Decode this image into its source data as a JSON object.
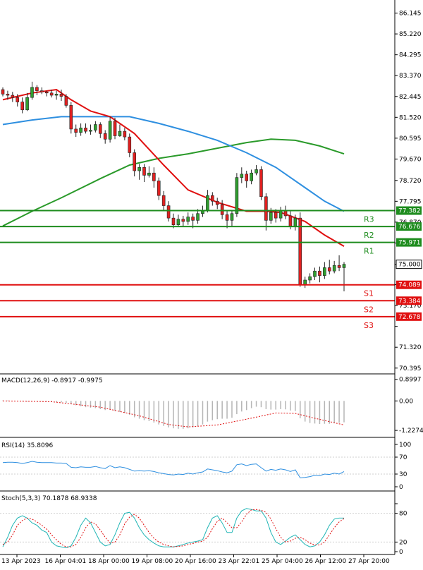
{
  "colors": {
    "candle_up": "#2f9e2f",
    "candle_down": "#e02020",
    "resistance": "#1e8c1e",
    "support": "#e01010",
    "ma_fast": "#e01010",
    "ma_mid": "#2e8fe0",
    "ma_slow": "#2a9a2a",
    "macd_signal": "#e01010",
    "rsi_line": "#2e8fe0",
    "stoch_k": "#1fb5b5",
    "stoch_d": "#e01010"
  },
  "chart_data": {
    "type": "candlestick",
    "price_axis": {
      "ticks": [
        86.145,
        85.22,
        84.295,
        83.37,
        82.445,
        81.52,
        80.595,
        79.67,
        78.72,
        77.795,
        76.87,
        75.945,
        75.0,
        74.095,
        73.17,
        72.245,
        71.32,
        70.395
      ],
      "labels": [
        "86.145",
        "85.220",
        "84.295",
        "83.370",
        "82.445",
        "81.520",
        "80.595",
        "79.670",
        "78.720",
        "77.795",
        "76.870",
        "",
        "75.000",
        "",
        "73.170",
        "",
        "71.320",
        "70.395"
      ],
      "ylim": [
        70.2,
        86.6
      ]
    },
    "time_axis": {
      "labels": [
        "13 Apr 2023",
        "16 Apr 04:01",
        "18 Apr 00:00",
        "19 Apr 08:00",
        "20 Apr 16:00",
        "23 Apr 22:01",
        "25 Apr 04:00",
        "26 Apr 12:00",
        "27 Apr 20:00"
      ]
    },
    "candles": [
      [
        82.75,
        82.55,
        82.85,
        82.45
      ],
      [
        82.55,
        82.5,
        82.7,
        82.3
      ],
      [
        82.5,
        82.4,
        82.65,
        82.2
      ],
      [
        82.4,
        82.2,
        82.55,
        82.0
      ],
      [
        82.2,
        81.85,
        82.4,
        81.7
      ],
      [
        81.85,
        82.4,
        82.6,
        81.8
      ],
      [
        82.4,
        82.85,
        83.1,
        82.3
      ],
      [
        82.85,
        82.7,
        82.95,
        82.5
      ],
      [
        82.7,
        82.65,
        82.85,
        82.55
      ],
      [
        82.65,
        82.6,
        82.7,
        82.45
      ],
      [
        82.6,
        82.5,
        82.75,
        82.4
      ],
      [
        82.5,
        82.55,
        82.7,
        82.3
      ],
      [
        82.55,
        82.45,
        82.75,
        82.25
      ],
      [
        82.45,
        82.05,
        82.55,
        81.95
      ],
      [
        82.05,
        81.0,
        82.2,
        80.8
      ],
      [
        81.0,
        80.85,
        81.2,
        80.65
      ],
      [
        80.85,
        81.05,
        81.25,
        80.7
      ],
      [
        81.05,
        80.9,
        81.25,
        80.8
      ],
      [
        80.9,
        80.95,
        81.2,
        80.75
      ],
      [
        80.95,
        81.2,
        81.35,
        80.85
      ],
      [
        81.2,
        80.8,
        81.3,
        80.6
      ],
      [
        80.8,
        80.55,
        80.95,
        80.35
      ],
      [
        80.55,
        81.35,
        81.55,
        80.4
      ],
      [
        81.35,
        80.7,
        81.5,
        80.55
      ],
      [
        80.7,
        80.9,
        81.2,
        80.65
      ],
      [
        80.9,
        80.65,
        81.05,
        80.5
      ],
      [
        80.65,
        79.95,
        80.8,
        79.75
      ],
      [
        79.95,
        79.15,
        80.1,
        78.9
      ],
      [
        79.15,
        79.3,
        79.45,
        78.75
      ],
      [
        79.3,
        78.95,
        79.45,
        78.65
      ],
      [
        78.95,
        79.05,
        79.35,
        78.85
      ],
      [
        79.05,
        78.7,
        79.3,
        78.4
      ],
      [
        78.7,
        78.05,
        78.85,
        77.85
      ],
      [
        78.05,
        77.6,
        78.25,
        77.4
      ],
      [
        77.6,
        77.05,
        77.8,
        76.9
      ],
      [
        77.05,
        76.75,
        77.25,
        76.6
      ],
      [
        76.75,
        77.0,
        77.2,
        76.7
      ],
      [
        77.0,
        76.9,
        77.15,
        76.65
      ],
      [
        76.9,
        77.1,
        77.3,
        76.75
      ],
      [
        77.1,
        76.95,
        77.25,
        76.6
      ],
      [
        76.95,
        77.25,
        77.45,
        76.8
      ],
      [
        77.25,
        77.4,
        77.6,
        77.1
      ],
      [
        77.4,
        78.05,
        78.3,
        77.3
      ],
      [
        78.05,
        77.8,
        78.2,
        77.6
      ],
      [
        77.8,
        77.65,
        77.95,
        77.45
      ],
      [
        77.65,
        77.2,
        77.85,
        77.0
      ],
      [
        77.2,
        76.95,
        77.4,
        76.6
      ],
      [
        76.95,
        77.25,
        77.4,
        76.7
      ],
      [
        77.25,
        78.85,
        79.05,
        77.1
      ],
      [
        78.85,
        79.0,
        79.3,
        78.6
      ],
      [
        79.0,
        78.7,
        79.15,
        78.4
      ],
      [
        78.7,
        79.05,
        79.2,
        78.55
      ],
      [
        79.05,
        79.2,
        79.4,
        78.95
      ],
      [
        79.2,
        78.0,
        79.35,
        77.85
      ],
      [
        78.0,
        76.95,
        78.15,
        76.5
      ],
      [
        76.95,
        77.3,
        77.5,
        76.8
      ],
      [
        77.3,
        77.05,
        77.45,
        76.85
      ],
      [
        77.05,
        77.4,
        77.55,
        76.9
      ],
      [
        77.4,
        77.15,
        77.6,
        77.0
      ],
      [
        77.15,
        76.7,
        77.35,
        76.55
      ],
      [
        76.7,
        77.05,
        77.2,
        76.5
      ],
      [
        77.05,
        74.1,
        77.3,
        74.0
      ],
      [
        74.1,
        74.3,
        74.45,
        73.95
      ],
      [
        74.3,
        74.45,
        74.6,
        74.15
      ],
      [
        74.45,
        74.7,
        74.85,
        74.3
      ],
      [
        74.7,
        74.5,
        74.9,
        74.2
      ],
      [
        74.5,
        74.85,
        75.1,
        74.35
      ],
      [
        74.85,
        74.7,
        75.2,
        74.55
      ],
      [
        74.7,
        74.95,
        75.15,
        74.6
      ],
      [
        74.95,
        74.85,
        75.4,
        74.7
      ],
      [
        74.85,
        75.0,
        75.1,
        73.8
      ]
    ],
    "sma_fast": [
      [
        0,
        82.3
      ],
      [
        6,
        82.6
      ],
      [
        11,
        82.75
      ],
      [
        14,
        82.3
      ],
      [
        18,
        81.8
      ],
      [
        22,
        81.55
      ],
      [
        27,
        80.8
      ],
      [
        33,
        79.4
      ],
      [
        38,
        78.3
      ],
      [
        44,
        77.75
      ],
      [
        50,
        77.35
      ],
      [
        54,
        77.35
      ],
      [
        57,
        77.3
      ],
      [
        62,
        76.9
      ],
      [
        66,
        76.3
      ],
      [
        70,
        75.8
      ]
    ],
    "sma_mid": [
      [
        0,
        81.2
      ],
      [
        6,
        81.4
      ],
      [
        12,
        81.55
      ],
      [
        18,
        81.55
      ],
      [
        26,
        81.55
      ],
      [
        32,
        81.25
      ],
      [
        38,
        80.9
      ],
      [
        44,
        80.5
      ],
      [
        50,
        79.95
      ],
      [
        56,
        79.3
      ],
      [
        62,
        78.4
      ],
      [
        66,
        77.8
      ],
      [
        70,
        77.35
      ]
    ],
    "sma_slow": [
      [
        0,
        76.7
      ],
      [
        6,
        77.35
      ],
      [
        12,
        77.95
      ],
      [
        20,
        78.8
      ],
      [
        26,
        79.4
      ],
      [
        32,
        79.7
      ],
      [
        38,
        79.9
      ],
      [
        44,
        80.15
      ],
      [
        50,
        80.4
      ],
      [
        55,
        80.55
      ],
      [
        60,
        80.5
      ],
      [
        65,
        80.25
      ],
      [
        70,
        79.9
      ]
    ],
    "levels": [
      {
        "label": "R3",
        "value": 77.382,
        "price_label": "77.382",
        "kind": "resistance"
      },
      {
        "label": "R2",
        "value": 76.676,
        "price_label": "76.676",
        "kind": "resistance"
      },
      {
        "label": "R1",
        "value": 75.971,
        "price_label": "75.971",
        "kind": "resistance"
      },
      {
        "label": "S1",
        "value": 74.089,
        "price_label": "74.089",
        "kind": "support"
      },
      {
        "label": "S2",
        "value": 73.384,
        "price_label": "73.384",
        "kind": "support"
      },
      {
        "label": "S3",
        "value": 72.678,
        "price_label": "72.678",
        "kind": "support"
      }
    ],
    "current_price": {
      "value": 75.0,
      "label": "75.000"
    },
    "macd": {
      "title": "MACD(12,26,9) -0.8917 -0.9975",
      "ticks": [
        0.8997,
        0.0,
        -1.2274
      ],
      "tick_labels": [
        "0.8997",
        "0.00",
        "-1.2274"
      ],
      "ylim": [
        -1.4,
        0.95
      ],
      "histogram": [
        0.02,
        0.02,
        0.01,
        0.0,
        -0.02,
        -0.03,
        -0.02,
        -0.01,
        -0.02,
        -0.03,
        -0.04,
        -0.05,
        -0.06,
        -0.08,
        -0.12,
        -0.18,
        -0.22,
        -0.26,
        -0.28,
        -0.3,
        -0.34,
        -0.38,
        -0.36,
        -0.42,
        -0.46,
        -0.5,
        -0.58,
        -0.68,
        -0.74,
        -0.8,
        -0.84,
        -0.9,
        -0.98,
        -1.04,
        -1.1,
        -1.14,
        -1.16,
        -1.16,
        -1.14,
        -1.1,
        -1.05,
        -0.98,
        -0.86,
        -0.8,
        -0.76,
        -0.74,
        -0.74,
        -0.7,
        -0.55,
        -0.44,
        -0.38,
        -0.3,
        -0.24,
        -0.26,
        -0.34,
        -0.36,
        -0.36,
        -0.34,
        -0.35,
        -0.4,
        -0.42,
        -0.72,
        -0.86,
        -0.92,
        -0.94,
        -0.96,
        -0.95,
        -0.95,
        -0.93,
        -0.91,
        -0.89
      ],
      "signal": [
        [
          0,
          0.0
        ],
        [
          10,
          -0.03
        ],
        [
          20,
          -0.26
        ],
        [
          28,
          -0.62
        ],
        [
          34,
          -0.98
        ],
        [
          38,
          -1.08
        ],
        [
          44,
          -1.0
        ],
        [
          50,
          -0.76
        ],
        [
          56,
          -0.5
        ],
        [
          60,
          -0.52
        ],
        [
          64,
          -0.72
        ],
        [
          70,
          -1.0
        ]
      ]
    },
    "rsi": {
      "title": "RSI(14) 35.8096",
      "ticks": [
        100,
        70,
        30,
        0
      ],
      "tick_labels": [
        "100",
        "70",
        "30",
        "0"
      ],
      "ylim": [
        0,
        100
      ],
      "values": [
        57,
        58,
        58,
        57,
        55,
        57,
        60,
        58,
        57,
        57,
        57,
        56,
        56,
        55,
        46,
        45,
        47,
        46,
        46,
        48,
        45,
        43,
        50,
        45,
        47,
        45,
        41,
        37,
        38,
        37,
        38,
        36,
        33,
        31,
        29,
        28,
        30,
        29,
        32,
        30,
        33,
        35,
        42,
        40,
        38,
        35,
        33,
        37,
        52,
        54,
        50,
        53,
        54,
        45,
        37,
        41,
        39,
        42,
        40,
        36,
        40,
        21,
        22,
        24,
        27,
        26,
        30,
        29,
        32,
        30,
        36
      ]
    },
    "stochastic": {
      "title": "Stoch(5,3,3) 70.1878 68.9338",
      "ticks": [
        100,
        80,
        20,
        0
      ],
      "tick_labels": [
        "",
        "80",
        "20",
        "0"
      ],
      "ylim": [
        0,
        100
      ],
      "k": [
        10,
        30,
        55,
        70,
        75,
        70,
        60,
        55,
        45,
        40,
        20,
        12,
        10,
        8,
        12,
        30,
        55,
        70,
        60,
        40,
        20,
        12,
        15,
        35,
        60,
        80,
        82,
        70,
        50,
        35,
        25,
        18,
        12,
        10,
        10,
        10,
        12,
        15,
        18,
        20,
        22,
        25,
        50,
        70,
        75,
        60,
        40,
        40,
        70,
        85,
        90,
        88,
        85,
        85,
        70,
        40,
        20,
        15,
        22,
        30,
        35,
        25,
        15,
        10,
        12,
        20,
        35,
        55,
        68,
        70,
        70
      ],
      "d": [
        15,
        20,
        35,
        55,
        65,
        70,
        68,
        62,
        55,
        47,
        35,
        25,
        15,
        10,
        10,
        15,
        30,
        50,
        62,
        58,
        45,
        30,
        18,
        20,
        35,
        58,
        72,
        78,
        70,
        55,
        40,
        28,
        20,
        15,
        12,
        10,
        11,
        12,
        15,
        17,
        20,
        22,
        30,
        48,
        63,
        70,
        60,
        50,
        50,
        62,
        78,
        87,
        88,
        86,
        82,
        68,
        48,
        30,
        20,
        22,
        28,
        30,
        25,
        18,
        14,
        14,
        20,
        35,
        50,
        62,
        69
      ]
    }
  }
}
